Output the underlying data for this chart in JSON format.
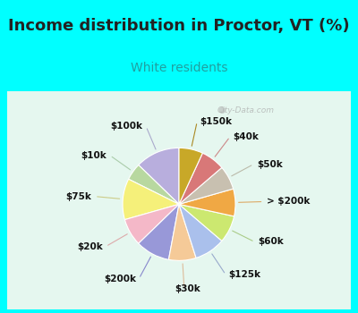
{
  "title": "Income distribution in Proctor, VT (%)",
  "subtitle": "White residents",
  "bg_cyan": "#00FFFF",
  "bg_chart": "#dff2ec",
  "labels": [
    "$100k",
    "$10k",
    "$75k",
    "$20k",
    "$200k",
    "$30k",
    "$125k",
    "$60k",
    "> $200k",
    "$50k",
    "$40k",
    "$150k"
  ],
  "values": [
    13,
    5,
    12,
    8,
    10,
    8,
    9,
    8,
    8,
    7,
    7,
    7
  ],
  "colors": [
    "#b8aedd",
    "#b8d8a0",
    "#f5f07a",
    "#f4b8c8",
    "#9898d8",
    "#f5ca98",
    "#aac0ec",
    "#cce870",
    "#f0a844",
    "#c8c0b0",
    "#d87878",
    "#c8a828"
  ],
  "startangle": 90,
  "label_fontsize": 7.5,
  "title_fontsize": 13,
  "subtitle_fontsize": 10,
  "watermark": "City-Data.com"
}
